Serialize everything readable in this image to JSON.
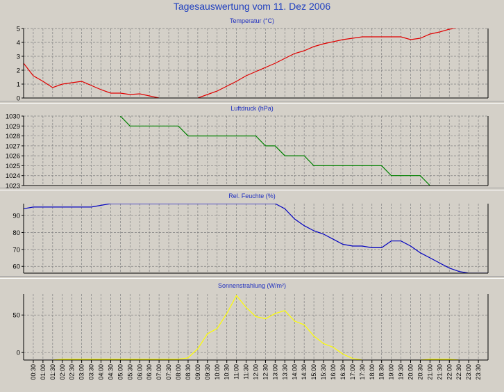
{
  "title": "Tagesauswertung vom 11. Dez 2006",
  "time_labels": [
    "00:30",
    "01:00",
    "01:30",
    "02:00",
    "02:30",
    "03:00",
    "03:30",
    "04:00",
    "04:30",
    "05:00",
    "05:30",
    "06:00",
    "06:30",
    "07:00",
    "07:30",
    "08:00",
    "08:30",
    "09:00",
    "09:30",
    "10:00",
    "10:30",
    "11:00",
    "11:30",
    "12:00",
    "12:30",
    "13:00",
    "13:30",
    "14:00",
    "14:30",
    "15:00",
    "15:30",
    "16:00",
    "16:30",
    "17:00",
    "17:30",
    "18:00",
    "18:30",
    "19:00",
    "19:30",
    "20:00",
    "20:30",
    "21:00",
    "21:30",
    "22:00",
    "22:30",
    "23:00",
    "23:30"
  ],
  "chart_data": [
    {
      "type": "line",
      "title": "Temperatur (°C)",
      "color": "#e00000",
      "ylim": [
        0,
        5
      ],
      "yticks": [
        0,
        1,
        2,
        3,
        4,
        5
      ],
      "series": [
        {
          "points": [
            [
              0.0,
              2.5
            ],
            [
              0.5,
              1.6
            ],
            [
              1.0,
              1.2
            ],
            [
              1.5,
              0.75
            ],
            [
              2.0,
              1.0
            ],
            [
              2.5,
              1.1
            ],
            [
              3.0,
              1.2
            ],
            [
              3.5,
              0.9
            ],
            [
              4.0,
              0.6
            ],
            [
              4.5,
              0.35
            ],
            [
              5.0,
              0.35
            ],
            [
              5.5,
              0.25
            ],
            [
              6.0,
              0.3
            ],
            [
              6.5,
              0.15
            ],
            [
              7.0,
              0.0
            ],
            [
              7.5,
              -0.2
            ],
            [
              8.0,
              -0.3
            ],
            [
              8.5,
              -0.2
            ],
            [
              9.0,
              0.0
            ],
            [
              9.5,
              0.25
            ],
            [
              10.0,
              0.5
            ],
            [
              10.5,
              0.85
            ],
            [
              11.0,
              1.2
            ],
            [
              11.5,
              1.6
            ],
            [
              12.0,
              1.9
            ],
            [
              12.5,
              2.2
            ],
            [
              13.0,
              2.5
            ],
            [
              13.5,
              2.85
            ],
            [
              14.0,
              3.2
            ],
            [
              14.5,
              3.4
            ],
            [
              15.0,
              3.7
            ],
            [
              15.5,
              3.9
            ],
            [
              16.0,
              4.05
            ],
            [
              16.5,
              4.2
            ],
            [
              17.0,
              4.3
            ],
            [
              17.5,
              4.4
            ],
            [
              18.0,
              4.4
            ],
            [
              18.5,
              4.4
            ],
            [
              19.0,
              4.4
            ],
            [
              19.5,
              4.4
            ],
            [
              20.0,
              4.2
            ],
            [
              20.5,
              4.3
            ],
            [
              21.0,
              4.6
            ],
            [
              21.5,
              4.75
            ],
            [
              22.0,
              4.95
            ],
            [
              22.5,
              5.05
            ],
            [
              23.0,
              5.1
            ],
            [
              23.5,
              5.1
            ],
            [
              24.0,
              5.1
            ]
          ]
        }
      ]
    },
    {
      "type": "line",
      "title": "Luftdruck (hPa)",
      "color": "#008000",
      "ylim": [
        1023,
        1030
      ],
      "yticks": [
        1023,
        1024,
        1025,
        1026,
        1027,
        1028,
        1029,
        1030
      ],
      "series": [
        {
          "points": [
            [
              4.6,
              1031
            ],
            [
              5.0,
              1030
            ],
            [
              5.5,
              1029
            ],
            [
              8.0,
              1029
            ],
            [
              8.5,
              1028
            ],
            [
              12.0,
              1028
            ],
            [
              12.5,
              1027
            ],
            [
              13.0,
              1027
            ],
            [
              13.5,
              1026
            ],
            [
              14.5,
              1026
            ],
            [
              15.0,
              1025
            ],
            [
              18.5,
              1025
            ],
            [
              19.0,
              1024
            ],
            [
              20.5,
              1024
            ],
            [
              21.0,
              1023
            ],
            [
              21.2,
              1022.7
            ]
          ]
        }
      ]
    },
    {
      "type": "line",
      "title": "Rel. Feuchte (%)",
      "color": "#0000c0",
      "ylim": [
        56,
        97
      ],
      "yticks": [
        60,
        70,
        80,
        90
      ],
      "series": [
        {
          "points": [
            [
              0.0,
              94
            ],
            [
              0.5,
              95
            ],
            [
              1.0,
              95
            ],
            [
              3.5,
              95
            ],
            [
              4.0,
              96
            ],
            [
              4.5,
              97
            ],
            [
              13.0,
              97
            ],
            [
              13.5,
              94
            ],
            [
              14.0,
              88
            ],
            [
              14.5,
              84
            ],
            [
              15.0,
              81
            ],
            [
              15.5,
              79
            ],
            [
              16.0,
              76
            ],
            [
              16.5,
              73
            ],
            [
              17.0,
              72
            ],
            [
              17.5,
              72
            ],
            [
              18.0,
              71
            ],
            [
              18.5,
              71
            ],
            [
              19.0,
              75
            ],
            [
              19.5,
              75
            ],
            [
              20.0,
              72
            ],
            [
              20.5,
              68
            ],
            [
              21.0,
              65
            ],
            [
              21.5,
              62
            ],
            [
              22.0,
              59
            ],
            [
              22.5,
              57
            ],
            [
              23.0,
              56
            ],
            [
              23.5,
              56
            ],
            [
              24.0,
              56
            ]
          ]
        }
      ]
    },
    {
      "type": "line",
      "title": "Sonnenstrahlung (W/m²)",
      "color": "#ffff00",
      "ylim": [
        -10,
        78
      ],
      "yticks": [
        0,
        50
      ],
      "series": [
        {
          "points": [
            [
              1.5,
              -10
            ],
            [
              2.0,
              -9
            ],
            [
              5.0,
              -9
            ],
            [
              7.0,
              -9
            ],
            [
              8.0,
              -9
            ],
            [
              8.5,
              -7
            ],
            [
              9.0,
              5
            ],
            [
              9.5,
              25
            ],
            [
              10.0,
              32
            ],
            [
              10.5,
              52
            ],
            [
              11.0,
              76
            ],
            [
              11.5,
              60
            ],
            [
              12.0,
              48
            ],
            [
              12.5,
              45
            ],
            [
              13.0,
              52
            ],
            [
              13.5,
              56
            ],
            [
              14.0,
              42
            ],
            [
              14.5,
              37
            ],
            [
              15.0,
              22
            ],
            [
              15.5,
              12
            ],
            [
              16.0,
              7
            ],
            [
              16.5,
              -2
            ],
            [
              17.0,
              -8
            ],
            [
              17.5,
              -10
            ]
          ]
        },
        {
          "points": [
            [
              20.5,
              -10
            ],
            [
              21.0,
              -9
            ],
            [
              22.0,
              -9
            ],
            [
              22.5,
              -10
            ]
          ]
        }
      ]
    }
  ]
}
